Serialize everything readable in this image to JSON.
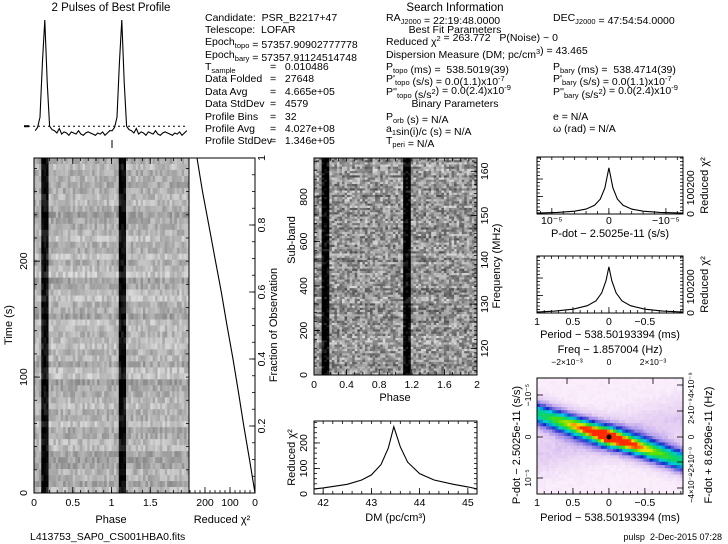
{
  "info": {
    "search_header": "Search Information",
    "best_fit_header": "Best Fit Parameters",
    "binary_header": "Binary Parameters",
    "left": [
      {
        "l": [
          [
            "Candidate:  PSR_B2217+47",
            ""
          ]
        ]
      },
      {
        "l": [
          [
            "Telescope:  LOFAR",
            ""
          ]
        ]
      },
      {
        "l": [
          [
            "Epoch",
            ""
          ],
          [
            "topo",
            "sub"
          ],
          [
            " = 57357.90902777778",
            ""
          ]
        ]
      },
      {
        "l": [
          [
            "Epoch",
            ""
          ],
          [
            "bary",
            "sub"
          ],
          [
            " = 57357.91124514748",
            ""
          ]
        ]
      },
      {
        "l": [
          [
            "T",
            ""
          ],
          [
            "sample",
            "sub"
          ]
        ],
        "v": "=   0.010486"
      },
      {
        "l": [
          [
            "Data Folded",
            ""
          ]
        ],
        "v": "=   27648"
      },
      {
        "l": [
          [
            "Data Avg",
            ""
          ]
        ],
        "v": "=   4.665e+05"
      },
      {
        "l": [
          [
            "Data StdDev",
            ""
          ]
        ],
        "v": "=   4579"
      },
      {
        "l": [
          [
            "Profile Bins",
            ""
          ]
        ],
        "v": "=   32"
      },
      {
        "l": [
          [
            "Profile Avg",
            ""
          ]
        ],
        "v": "=   4.027e+08"
      },
      {
        "l": [
          [
            "Profile StdDev",
            ""
          ]
        ],
        "v": "=   1.346e+05"
      }
    ],
    "middle": [
      {
        "l": [
          [
            "RA",
            ""
          ],
          [
            "J2000",
            "sub"
          ],
          [
            " = 22:19:48.0000",
            ""
          ]
        ]
      },
      {
        "l": [
          [
            "Reduced ",
            ""
          ],
          [
            "χ",
            ""
          ],
          [
            "2",
            "sup"
          ],
          [
            " = 263.772   P(Noise) ~ 0",
            ""
          ]
        ]
      },
      {
        "l": [
          [
            "Dispersion Measure (DM; pc/cm",
            ""
          ],
          [
            "3",
            "sup"
          ],
          [
            ") = 43.465",
            ""
          ]
        ]
      },
      {
        "l": [
          [
            "P",
            ""
          ],
          [
            "topo",
            "sub"
          ],
          [
            " (ms) =  538.5019(39)",
            ""
          ]
        ]
      },
      {
        "l": [
          [
            "P'",
            ""
          ],
          [
            "topo",
            "sub"
          ],
          [
            " (s/s) = 0.0(1.1)x10",
            ""
          ],
          [
            "-7",
            "sup"
          ]
        ]
      },
      {
        "l": [
          [
            "P''",
            ""
          ],
          [
            "topo",
            "sub"
          ],
          [
            " (s/s",
            ""
          ],
          [
            "2",
            "sup"
          ],
          [
            ") = 0.0(2.4)x10",
            ""
          ],
          [
            "-9",
            "sup"
          ]
        ]
      },
      {
        "l": [
          [
            "P",
            ""
          ],
          [
            "orb",
            "sub"
          ],
          [
            " (s) = N/A",
            ""
          ]
        ]
      },
      {
        "l": [
          [
            "a",
            ""
          ],
          [
            "1",
            "sub"
          ],
          [
            "sin(i)/c (s) = N/A",
            ""
          ]
        ]
      },
      {
        "l": [
          [
            "T",
            ""
          ],
          [
            "peri",
            "sub"
          ],
          [
            " = N/A",
            ""
          ]
        ]
      }
    ],
    "right": [
      {
        "l": [
          [
            "DEC",
            ""
          ],
          [
            "J2000",
            "sub"
          ],
          [
            " = 47:54:54.0000",
            ""
          ]
        ]
      },
      {
        "l": [
          [
            "P",
            ""
          ],
          [
            "bary",
            "sub"
          ],
          [
            " (ms) =  538.4714(39)",
            ""
          ]
        ]
      },
      {
        "l": [
          [
            "P'",
            ""
          ],
          [
            "bary",
            "sub"
          ],
          [
            " (s/s) = 0.0(1.1)x10",
            ""
          ],
          [
            "-7",
            "sup"
          ]
        ]
      },
      {
        "l": [
          [
            "P''",
            ""
          ],
          [
            "bary",
            "sub"
          ],
          [
            " (s/s",
            ""
          ],
          [
            "2",
            "sup"
          ],
          [
            ") = 0.0(2.4)x10",
            ""
          ],
          [
            "-9",
            "sup"
          ]
        ]
      },
      {
        "l": [
          [
            "e = N/A",
            ""
          ]
        ]
      },
      {
        "l": [
          [
            "ω (rad) = N/A",
            ""
          ]
        ]
      }
    ]
  },
  "footer": {
    "filename": "L413753_SAP0_CS001HBA0.fits",
    "stamp": "pulsp  2-Dec-2015 07:28"
  },
  "chart_data": [
    {
      "id": "profile",
      "type": "line",
      "title": "2 Pulses of Best Profile",
      "xlim": [
        0,
        2
      ],
      "bins": 32,
      "values": [
        0.02,
        0.05,
        0.14,
        0.62,
        1.0,
        0.45,
        0.06,
        0.03,
        0.02,
        0.0,
        0.04,
        -0.01,
        0.01,
        0.0,
        -0.02,
        0.01,
        0.0,
        -0.01,
        0.02,
        -0.01,
        -0.02,
        0.0,
        0.01,
        0.0,
        -0.01,
        -0.02,
        0.0,
        -0.01,
        0.01,
        -0.02,
        0.0,
        0.02
      ],
      "dashed_level": 0.06
    },
    {
      "id": "time-phase",
      "type": "heatmap",
      "colormap": "greyscale",
      "xlabel": "Phase",
      "ylabel": "Time (s)",
      "xlim": [
        0,
        2
      ],
      "ylim": [
        0,
        289
      ],
      "xticks": [
        "0",
        "0.5",
        "1",
        "1.5"
      ],
      "yticks": [
        "0",
        "100",
        "200"
      ],
      "pulse_phase": 0.14
    },
    {
      "id": "chi2-vs-fraction",
      "type": "line",
      "xlabel": "Reduced χ²",
      "ylabel": "Fraction of Observation",
      "xlim": [
        264,
        0
      ],
      "ylim": [
        0,
        1
      ],
      "xticks": [
        "200",
        "100",
        "0"
      ],
      "yticks": [
        "0.2",
        "0.4",
        "0.6",
        "0.8",
        "1"
      ],
      "points": [
        [
          0,
          0
        ],
        [
          0.1,
          22
        ],
        [
          0.2,
          45
        ],
        [
          0.3,
          66
        ],
        [
          0.4,
          88
        ],
        [
          0.5,
          112
        ],
        [
          0.6,
          135
        ],
        [
          0.7,
          160
        ],
        [
          0.8,
          185
        ],
        [
          0.9,
          210
        ],
        [
          1,
          232
        ]
      ]
    },
    {
      "id": "subband-phase",
      "type": "heatmap",
      "colormap": "greyscale",
      "xlabel": "Phase",
      "ylabel": "Sub-band",
      "y2label": "Frequency (MHz)",
      "xlim": [
        0,
        2
      ],
      "ylim": [
        0,
        975
      ],
      "y2lim": [
        114,
        163
      ],
      "xticks": [
        "0",
        "0.4",
        "0.8",
        "1.2",
        "1.6",
        "2"
      ],
      "yticks": [
        "0",
        "200",
        "400",
        "600",
        "800"
      ],
      "y2ticks": [
        "120",
        "130",
        "140",
        "150",
        "160"
      ],
      "pulse_phase": 0.14
    },
    {
      "id": "dm-chi2",
      "type": "line",
      "xlabel": "DM (pc/cm³)",
      "ylabel": "Reduced χ²",
      "xlim": [
        41.81,
        45.19
      ],
      "ylim": [
        0,
        286
      ],
      "xticks": [
        "42",
        "43",
        "44",
        "45"
      ],
      "yticks": [
        "0",
        "100",
        "200"
      ],
      "points": [
        [
          41.81,
          20
        ],
        [
          42,
          24
        ],
        [
          42.5,
          38
        ],
        [
          42.8,
          55
        ],
        [
          43,
          75
        ],
        [
          43.2,
          115
        ],
        [
          43.35,
          180
        ],
        [
          43.465,
          263.8
        ],
        [
          43.6,
          185
        ],
        [
          43.75,
          125
        ],
        [
          44,
          80
        ],
        [
          44.3,
          55
        ],
        [
          44.7,
          38
        ],
        [
          45,
          28
        ],
        [
          45.19,
          20
        ]
      ]
    },
    {
      "id": "pdot-chi2",
      "type": "line",
      "xlabel": "P-dot − 2.5025e-11 (s/s)",
      "ylabel": "Reduced χ²",
      "xlim": [
        1.26e-05,
        -1.3e-05
      ],
      "ylim": [
        0,
        326
      ],
      "xticks": [
        "10⁻⁵",
        "0",
        "−10⁻⁵"
      ],
      "yticks": [
        "0",
        "100",
        "200"
      ],
      "points": [
        [
          1.26e-05,
          5
        ],
        [
          9e-06,
          9
        ],
        [
          6e-06,
          16
        ],
        [
          4e-06,
          28
        ],
        [
          2.5e-06,
          50
        ],
        [
          1.5e-06,
          85
        ],
        [
          7e-07,
          150
        ],
        [
          0,
          263.8
        ],
        [
          -7e-07,
          150
        ],
        [
          -1.5e-06,
          85
        ],
        [
          -2.5e-06,
          50
        ],
        [
          -4e-06,
          28
        ],
        [
          -6e-06,
          16
        ],
        [
          -9e-06,
          9
        ],
        [
          -1.3e-05,
          5
        ]
      ]
    },
    {
      "id": "period-chi2",
      "type": "line",
      "xlabel": "Period − 538.50193394 (ms)",
      "ylabel": "Reduced χ²",
      "xlim": [
        1,
        -1.03
      ],
      "ylim": [
        0,
        326
      ],
      "xticks": [
        "1",
        "0.5",
        "0",
        "−0.5"
      ],
      "yticks": [
        "0",
        "100",
        "200"
      ],
      "points": [
        [
          1,
          5
        ],
        [
          0.75,
          11
        ],
        [
          0.5,
          22
        ],
        [
          0.3,
          42
        ],
        [
          0.18,
          70
        ],
        [
          0.1,
          115
        ],
        [
          0.04,
          185
        ],
        [
          0,
          263.8
        ],
        [
          -0.04,
          185
        ],
        [
          -0.1,
          115
        ],
        [
          -0.18,
          70
        ],
        [
          -0.3,
          42
        ],
        [
          -0.5,
          22
        ],
        [
          -0.75,
          11
        ],
        [
          -1.03,
          5
        ]
      ]
    },
    {
      "id": "p-pdot-plane",
      "type": "heatmap",
      "colormap": "rainbow",
      "xlabel": "Period − 538.50193394 (ms)",
      "ylabel": "P-dot − 2.5025e-11 (s/s)",
      "x2label": "Freq − 1.857004 (Hz)",
      "y2label": "F-dot + 8.6296e-11 (Hz)",
      "xticks": [
        "1",
        "0.5",
        "0",
        "−0.5"
      ],
      "yticks": [
        "−10⁻⁵",
        "0",
        "10⁻⁵"
      ],
      "x2ticks": [
        "−2×10⁻³",
        "0",
        "2×10⁻³"
      ],
      "y2ticks": [
        "4×10⁻⁹",
        "2×10⁻⁹",
        "0",
        "−2×10⁻⁹",
        "−4×10⁻⁹"
      ],
      "colors": [
        "#fbeefb",
        "#e2cbf2",
        "#9a88e6",
        "#1428c8",
        "#00c8e8",
        "#00d27a",
        "#50e000",
        "#f0e000",
        "#ff2a00"
      ]
    }
  ]
}
